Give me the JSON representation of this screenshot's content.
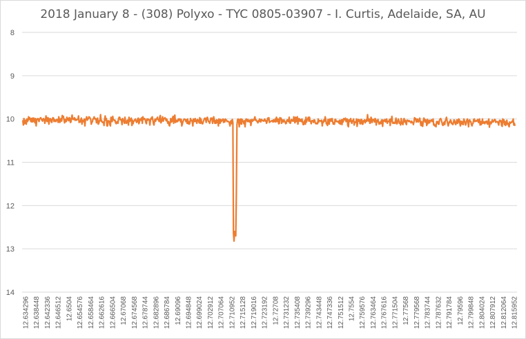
{
  "chart_data": {
    "type": "line",
    "title": "2018 January 8 - (308) Polyxo - TYC 0805-03907 - I. Curtis, Adelaide, SA, AU",
    "xlabel": "",
    "ylabel": "",
    "ylim": [
      8,
      14
    ],
    "y_inverted": true,
    "y_ticks": [
      8,
      9,
      10,
      11,
      12,
      13,
      14
    ],
    "grid": "horizontal",
    "legend": "none",
    "series_color": "#ED7D31",
    "x_tick_labels": [
      "12.634296",
      "12.638448",
      "12.642336",
      "12.646512",
      "12.6504",
      "12.654576",
      "12.658464",
      "12.662616",
      "12.666504",
      "12.67068",
      "12.674568",
      "12.678744",
      "12.682896",
      "12.686784",
      "12.69096",
      "12.694848",
      "12.699024",
      "12.702912",
      "12.707064",
      "12.710952",
      "12.715128",
      "12.719016",
      "12.723192",
      "12.72708",
      "12.731232",
      "12.735408",
      "12.739296",
      "12.743448",
      "12.747336",
      "12.751512",
      "12.7554",
      "12.759576",
      "12.763464",
      "12.767616",
      "12.771504",
      "12.77568",
      "12.779568",
      "12.783744",
      "12.787632",
      "12.791784",
      "12.79596",
      "12.799848",
      "12.804024",
      "12.807912",
      "12.812064",
      "12.815952"
    ],
    "x_start": 12.634296,
    "x_step": 0.000432,
    "values": [
      10.03,
      10.14,
      9.99,
      10.11,
      10.09,
      10.03,
      10.12,
      10.0,
      10.06,
      10.04,
      9.95,
      10.01,
      9.97,
      10.01,
      10.06,
      9.99,
      10.07,
      9.98,
      10.06,
      9.98,
      10.03,
      10.09,
      9.99,
      10.16,
      10.04,
      10.0,
      9.99,
      10.01,
      10.06,
      10.0,
      9.98,
      9.97,
      10.0,
      10.03,
      10.05,
      10.0,
      9.99,
      10.02,
      10.1,
      10.04,
      9.93,
      10.01,
      10.06,
      9.97,
      9.98,
      10.12,
      10.04,
      9.99,
      10.0,
      10.06,
      10.08,
      10.0,
      9.97,
      9.98,
      10.06,
      10.02,
      10.03,
      10.06,
      10.02,
      10.01,
      10.03,
      10.08,
      9.95,
      10.01,
      10.08,
      10.02,
      9.99,
      10.05,
      9.92,
      9.95,
      9.94,
      10.02,
      10.09,
      10.01,
      10.06,
      10.06,
      9.96,
      10.02,
      9.99,
      10.04,
      9.97,
      9.98,
      10.08,
      10.07,
      9.98,
      9.91,
      10.0,
      10.01,
      10.01,
      9.97,
      10.03,
      10.0,
      10.03,
      10.02,
      10.01,
      10.01,
      9.93,
      10.08,
      10.06,
      10.07,
      10.01,
      9.98,
      10.12,
      10.03,
      10.06,
      10.06,
      10.0,
      10.16,
      10.02,
      10.0,
      9.95,
      10.03,
      10.01,
      9.99,
      9.95,
      9.96,
      9.98,
      10.01,
      10.12,
      10.08,
      10.06,
      10.0,
      9.99,
      9.95,
      10.0,
      9.99,
      10.0,
      10.09,
      10.0,
      9.98,
      10.12,
      10.1,
      10.04,
      10.04,
      9.9,
      10.05,
      10.04,
      10.08,
      10.08,
      10.07,
      10.15,
      10.0,
      9.93,
      10.03,
      9.99,
      10.16,
      10.16,
      10.04,
      10.05,
      10.05,
      10.13,
      10.16,
      9.96,
      10.04,
      10.06,
      9.94,
      10.02,
      10.02,
      10.04,
      10.03,
      10.09,
      10.11,
      10.07,
      10.06,
      10.1,
      10.0,
      9.96,
      9.96,
      10.02,
      10.01,
      10.03,
      10.13,
      9.99,
      10.03,
      10.04,
      10.1,
      9.96,
      10.06,
      10.1,
      10.09,
      10.03,
      10.03,
      10.14,
      9.96,
      10.06,
      10.0,
      10.04,
      9.98,
      10.15,
      10.03,
      10.11,
      10.05,
      10.05,
      10.02,
      10.0,
      10.04,
      10.08,
      10.07,
      10.0,
      9.98,
      10.11,
      10.07,
      10.0,
      10.0,
      10.03,
      9.97,
      10.1,
      9.95,
      10.01,
      10.0,
      9.99,
      10.02,
      10.08,
      10.11,
      10.0,
      10.03,
      10.0,
      10.02,
      10.02,
      10.14,
      10.03,
      9.98,
      10.0,
      9.95,
      10.02,
      10.1,
      10.14,
      10.05,
      10.0,
      10.05,
      10.01,
      9.99,
      9.96,
      10.02,
      10.02,
      10.06,
      9.95,
      9.92,
      10.09,
      10.06,
      10.01,
      9.95,
      10.05,
      10.0,
      9.99,
      9.97,
      10.0,
      10.04,
      10.0,
      10.05,
      10.1,
      10.06,
      10.14,
      10.16,
      10.08,
      9.99,
      10.07,
      10.06,
      9.98,
      9.94,
      10.1,
      9.95,
      9.91,
      10.08,
      10.07,
      10.03,
      10.06,
      10.06,
      10.0,
      10.03,
      10.0,
      10.0,
      10.07,
      10.01,
      10.16,
      10.11,
      10.06,
      10.03,
      10.0,
      10.01,
      10.01,
      10.06,
      10.02,
      10.1,
      10.0,
      10.11,
      10.06,
      10.12,
      10.09,
      9.99,
      10.04,
      10.03,
      10.06,
      10.16,
      10.0,
      10.02,
      10.06,
      9.99,
      10.06,
      10.03,
      10.1,
      10.01,
      10.03,
      10.04,
      10.09,
      9.97,
      10.1,
      10.0,
      10.07,
      10.11,
      10.11,
      10.06,
      10.03,
      9.99,
      9.98,
      10.0,
      10.08,
      9.98,
      9.96,
      10.01,
      10.06,
      10.06,
      10.1,
      10.05,
      9.98,
      10.0,
      9.98,
      10.1,
      10.05,
      9.95,
      10.02,
      10.1,
      10.04,
      10.1,
      10.02,
      10.08,
      10.03,
      10.16,
      10.0,
      10.04,
      10.1,
      10.01,
      10.06,
      10.03,
      10.03,
      10.0,
      10.08,
      10.02,
      10.07,
      10.0,
      10.02,
      10.03,
      10.06,
      10.05,
      10.06,
      10.06,
      10.1,
      10.16,
      10.06,
      10.04,
      10.11,
      10.01,
      10.08,
      12.64,
      12.82,
      12.6,
      12.66,
      12.7,
      11.7,
      10.14,
      10.02,
      10.0,
      10.05,
      10.18,
      10.01,
      10.11,
      10.0,
      10.12,
      10.01,
      10.06,
      10.05,
      10.11,
      10.04,
      10.18,
      10.03,
      10.0,
      10.02,
      10.06,
      10.01,
      10.06,
      10.04,
      10.07,
      10.02,
      10.15,
      10.07,
      10.01,
      10.05,
      10.03,
      10.03,
      9.99,
      9.95,
      10.03,
      10.02,
      10.05,
      10.06,
      10.09,
      10.04,
      10.06,
      10.0,
      10.02,
      10.07,
      10.01,
      10.02,
      10.04,
      10.04,
      10.05,
      10.02,
      10.0,
      10.05,
      10.04,
      10.1,
      10.06,
      9.98,
      10.02,
      9.97,
      10.08,
      10.06,
      10.06,
      10.05,
      10.04,
      10.04,
      10.07,
      10.02,
      10.06,
      10.06,
      10.0,
      10.07,
      9.96,
      10.01,
      10.06,
      10.0,
      10.11,
      10.1,
      9.97,
      9.99,
      9.98,
      10.1,
      10.02,
      10.06,
      10.07,
      10.02,
      10.05,
      10.07,
      10.11,
      10.1,
      10.03,
      10.02,
      10.05,
      10.06,
      9.96,
      10.09,
      10.1,
      10.06,
      10.01,
      10.03,
      10.05,
      10.05,
      9.95,
      10.03,
      10.09,
      9.96,
      10.06,
      10.0,
      9.95,
      10.12,
      10.04,
      9.99,
      10.05,
      10.01,
      10.05,
      10.06,
      10.0,
      10.06,
      10.13,
      10.13,
      10.06,
      10.03,
      10.12,
      9.96,
      10.07,
      10.01,
      10.01,
      9.96,
      10.05,
      9.96,
      10.05,
      10.06,
      10.11,
      10.04,
      10.04,
      10.04,
      10.08,
      10.02,
      10.03,
      10.09,
      10.11,
      10.11,
      10.09,
      10.11,
      10.0,
      10.07,
      10.04,
      10.04,
      10.04,
      10.06,
      10.03,
      10.16,
      10.06,
      10.08,
      10.02,
      10.05,
      9.95,
      10.01,
      10.11,
      10.1,
      10.15,
      10.01,
      10.07,
      10.12,
      10.0,
      10.05,
      10.0,
      10.05,
      9.99,
      10.07,
      10.12,
      10.09,
      10.12,
      10.01,
      10.01,
      10.06,
      10.05,
      10.06,
      10.07,
      10.05,
      10.1,
      10.03,
      10.12,
      10.07,
      10.02,
      10.13,
      10.02,
      10.07,
      9.99,
      10.01,
      10.02,
      9.98,
      10.06,
      10.01,
      10.0,
      10.15,
      10.18,
      10.02,
      10.06,
      10.04,
      9.99,
      10.07,
      10.1,
      10.04,
      10.05,
      10.0,
      10.14,
      10.07,
      10.07,
      10.08,
      10.0,
      10.17,
      10.07,
      10.01,
      10.05,
      10.02,
      10.11,
      10.11,
      10.01,
      10.02,
      10.12,
      10.12,
      10.04,
      10.06,
      10.02,
      10.09,
      10.06,
      10.02,
      10.05,
      9.9,
      10.03,
      10.05,
      10.0,
      10.1,
      10.09,
      9.96,
      10.0,
      10.08,
      10.02,
      10.01,
      10.02,
      10.07,
      9.99,
      10.01,
      10.14,
      10.04,
      10.06,
      10.01,
      10.08,
      10.12,
      10.08,
      10.07,
      10.11,
      10.03,
      10.02,
      10.17,
      10.03,
      10.04,
      10.05,
      10.01,
      10.07,
      10.03,
      10.0,
      10.1,
      10.06,
      10.05,
      10.06,
      10.01,
      10.15,
      10.0,
      10.05,
      9.94,
      10.09,
      10.1,
      10.08,
      10.1,
      10.1,
      10.05,
      9.98,
      10.11,
      10.11,
      10.05,
      10.0,
      10.04,
      10.1,
      10.08,
      10.14,
      9.99,
      10.09,
      10.11,
      10.13,
      10.02,
      9.99,
      10.07,
      10.03,
      10.1,
      10.13,
      10.03,
      10.03,
      10.04,
      10.06,
      10.04,
      10.06,
      10.06,
      10.09,
      10.05,
      10.08,
      10.08,
      10.13,
      10.07,
      9.97,
      10.01,
      9.99,
      10.07,
      10.03,
      10.0,
      10.07,
      10.06,
      10.02,
      9.98,
      10.08,
      10.15,
      10.06,
      10.16,
      10.17,
      10.05,
      9.98,
      10.0,
      10.07,
      10.02,
      10.05,
      10.15,
      10.01,
      10.11,
      10.07,
      10.03,
      10.09,
      10.04,
      10.04,
      10.02,
      10.06,
      10.05,
      10.0,
      10.14,
      10.12,
      10.16,
      10.14,
      10.18,
      10.06,
      10.09,
      10.06,
      10.12,
      10.12,
      10.03,
      10.0,
      9.99,
      10.02,
      10.07,
      10.13,
      10.15,
      10.1,
      10.07,
      10.13,
      10.04,
      10.01,
      9.96,
      10.04,
      10.1,
      10.16,
      10.11,
      10.06,
      10.08,
      10.02,
      10.05,
      10.11,
      10.1,
      10.13,
      10.09,
      10.02,
      10.04,
      10.1,
      10.13,
      10.08,
      10.02,
      10.1,
      10.08,
      10.0,
      10.01,
      10.1,
      10.16,
      10.05,
      10.07,
      10.12,
      10.06,
      10.13,
      10.0,
      10.04,
      10.07,
      10.14,
      10.1,
      10.03,
      10.0,
      10.04,
      10.18,
      10.05,
      10.02,
      10.06,
      10.06,
      10.13,
      10.16,
      10.11,
      10.09,
      10.01,
      10.0,
      10.06,
      10.05,
      10.04,
      10.05,
      10.03,
      10.01,
      10.08,
      10.08,
      10.0,
      10.14,
      10.06,
      10.13,
      10.08,
      10.0,
      10.1,
      10.07,
      10.07,
      10.11,
      10.06,
      10.08,
      10.05,
      10.1,
      10.12,
      10.04,
      10.0,
      10.19,
      10.09,
      10.07,
      10.11,
      10.06,
      10.02,
      10.07,
      10.06,
      10.04,
      10.01,
      10.02,
      10.08,
      10.06,
      10.06,
      10.06,
      10.1,
      10.14,
      10.05,
      10.03,
      10.06,
      10.04,
      10.15,
      10.17,
      10.0,
      10.08,
      10.02,
      10.13,
      10.06,
      10.15,
      10.11,
      10.03,
      10.12,
      10.1,
      10.15,
      10.18,
      10.07,
      10.1,
      10.08,
      10.08,
      10.05,
      10.07,
      10.0,
      10.14,
      10.1,
      10.16
    ]
  }
}
